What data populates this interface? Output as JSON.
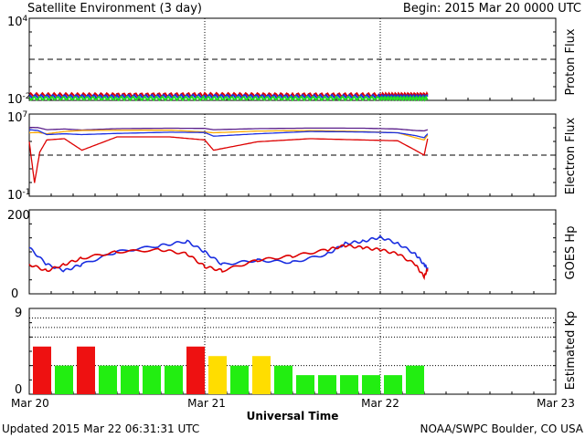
{
  "header": {
    "title": "Satellite Environment (3 day)",
    "begin": "Begin:  2015 Mar 20 0000 UTC"
  },
  "footer": {
    "updated": "Updated 2015 Mar 22 06:31:31 UTC",
    "credit": "NOAA/SWPC Boulder, CO USA",
    "xlabel": "Universal Time"
  },
  "x_axis": {
    "ticks": [
      "Mar 20",
      "Mar 21",
      "Mar 22",
      "Mar 23"
    ]
  },
  "colors": {
    "red": "#dd0000",
    "blue": "#1a2ee0",
    "green": "#22dd22",
    "orange": "#ffaa00",
    "purple": "#5a1e8a",
    "kp_red": "#ee1111",
    "kp_green": "#22ee11",
    "kp_yellow": "#ffdd00"
  },
  "chart_data": [
    {
      "type": "line",
      "panel": "proton",
      "ylabel": "Proton Flux",
      "yscale": "log",
      "ylim": [
        0.01,
        10000
      ],
      "ytick_labels": [
        {
          "base": "10",
          "exp": "4"
        },
        {
          "base": "10",
          "exp": "-2"
        }
      ],
      "threshold": 10,
      "x_range_days": [
        0,
        3
      ],
      "series": [
        {
          "color": "red",
          "x": [
            0,
            0.5,
            1,
            1.5,
            2,
            2.27
          ],
          "y": [
            0.025,
            0.025,
            0.026,
            0.025,
            0.025,
            0.026
          ]
        },
        {
          "color": "blue",
          "x": [
            0,
            0.5,
            1,
            1.5,
            2,
            2.27
          ],
          "y": [
            0.019,
            0.019,
            0.02,
            0.019,
            0.019,
            0.019
          ]
        },
        {
          "color": "green",
          "x": [
            0,
            0.5,
            1,
            1.5,
            2,
            2.27
          ],
          "y": [
            0.014,
            0.014,
            0.014,
            0.014,
            0.014,
            0.014
          ]
        }
      ]
    },
    {
      "type": "line",
      "panel": "electron",
      "ylabel": "Electron Flux",
      "yscale": "log",
      "ylim": [
        0.1,
        10000000
      ],
      "ytick_labels": [
        {
          "base": "10",
          "exp": "7"
        },
        {
          "base": "10",
          "exp": "-1"
        }
      ],
      "threshold": 1000,
      "x_range_days": [
        0,
        3
      ],
      "series": [
        {
          "color": "purple",
          "x": [
            0,
            0.05,
            0.1,
            0.2,
            0.3,
            0.5,
            0.8,
            1.0,
            1.05,
            1.3,
            1.6,
            1.9,
            2.1,
            2.2,
            2.25,
            2.27
          ],
          "y": [
            500000,
            480000,
            300000,
            350000,
            280000,
            380000,
            420000,
            400000,
            300000,
            380000,
            430000,
            420000,
            350000,
            250000,
            230000,
            300000
          ]
        },
        {
          "color": "orange",
          "x": [
            0,
            0.05,
            0.1,
            0.2,
            0.3,
            0.5,
            0.8,
            1.0,
            1.05,
            1.3,
            1.6,
            1.9,
            2.1,
            2.2,
            2.25,
            2.27
          ],
          "y": [
            150000,
            160000,
            120000,
            200000,
            250000,
            260000,
            270000,
            180000,
            150000,
            220000,
            250000,
            200000,
            150000,
            50000,
            30000,
            90000
          ]
        },
        {
          "color": "blue",
          "x": [
            0,
            0.05,
            0.1,
            0.2,
            0.3,
            0.5,
            0.8,
            1.0,
            1.05,
            1.3,
            1.6,
            1.9,
            2.1,
            2.2,
            2.25,
            2.27
          ],
          "y": [
            300000,
            250000,
            100000,
            120000,
            100000,
            130000,
            170000,
            160000,
            70000,
            120000,
            200000,
            180000,
            150000,
            80000,
            50000,
            120000
          ]
        },
        {
          "color": "red",
          "x": [
            0,
            0.03,
            0.06,
            0.1,
            0.2,
            0.3,
            0.5,
            0.8,
            1.0,
            1.05,
            1.3,
            1.6,
            1.9,
            2.1,
            2.2,
            2.25,
            2.27
          ],
          "y": [
            20000,
            2,
            2000,
            30000,
            40000,
            3000,
            60000,
            60000,
            30000,
            3000,
            20000,
            40000,
            30000,
            25000,
            3000,
            1000,
            40000
          ]
        }
      ]
    },
    {
      "type": "line",
      "panel": "goes_hp",
      "ylabel": "GOES Hp",
      "ylim": [
        0,
        200
      ],
      "yticks": [
        0,
        200
      ],
      "x_range_days": [
        0,
        3
      ],
      "series": [
        {
          "color": "blue",
          "x": [
            0,
            0.1,
            0.2,
            0.3,
            0.5,
            0.75,
            0.9,
            1.0,
            1.1,
            1.3,
            1.5,
            1.7,
            1.8,
            1.9,
            2.0,
            2.1,
            2.2,
            2.25,
            2.27
          ],
          "y": [
            110,
            70,
            55,
            70,
            100,
            115,
            125,
            100,
            70,
            80,
            75,
            95,
            120,
            125,
            135,
            120,
            95,
            70,
            60
          ]
        },
        {
          "color": "red",
          "x": [
            0,
            0.1,
            0.2,
            0.3,
            0.5,
            0.75,
            0.9,
            1.0,
            1.1,
            1.3,
            1.5,
            1.7,
            1.8,
            1.9,
            2.0,
            2.1,
            2.2,
            2.25,
            2.27
          ],
          "y": [
            70,
            55,
            70,
            85,
            100,
            105,
            95,
            65,
            55,
            80,
            90,
            105,
            115,
            110,
            105,
            95,
            70,
            40,
            60
          ]
        }
      ]
    },
    {
      "type": "bar",
      "panel": "kp",
      "ylabel": "Estimated Kp",
      "ylim": [
        0,
        9
      ],
      "yticks": [
        0,
        9
      ],
      "bar_width_hours": 3,
      "values": [
        5,
        3,
        5,
        3,
        3,
        3,
        3,
        5,
        4,
        3,
        4,
        3,
        2,
        2,
        2,
        2,
        2,
        3
      ],
      "colors": [
        "kp_red",
        "kp_green",
        "kp_red",
        "kp_green",
        "kp_green",
        "kp_green",
        "kp_green",
        "kp_red",
        "kp_yellow",
        "kp_green",
        "kp_yellow",
        "kp_green",
        "kp_green",
        "kp_green",
        "kp_green",
        "kp_green",
        "kp_green",
        "kp_green"
      ]
    }
  ]
}
